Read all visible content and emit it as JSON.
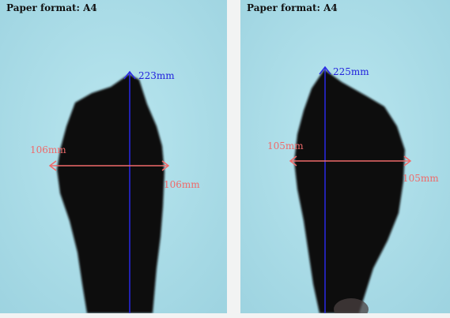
{
  "panels": [
    {
      "paper_format": "Paper format: A4",
      "length_label": "223mm",
      "width_label_left": "106mm",
      "width_label_right": "106mm"
    },
    {
      "paper_format": "Paper format: A4",
      "length_label": "225mm",
      "width_label_left": "105mm",
      "width_label_right": "105mm"
    }
  ],
  "colors": {
    "paper_background": "#a9dbe6",
    "foot": "#0d0d10",
    "length_line": "#2a2ae6",
    "width_line": "#f06b6b",
    "gap": "#f2f3f3"
  }
}
